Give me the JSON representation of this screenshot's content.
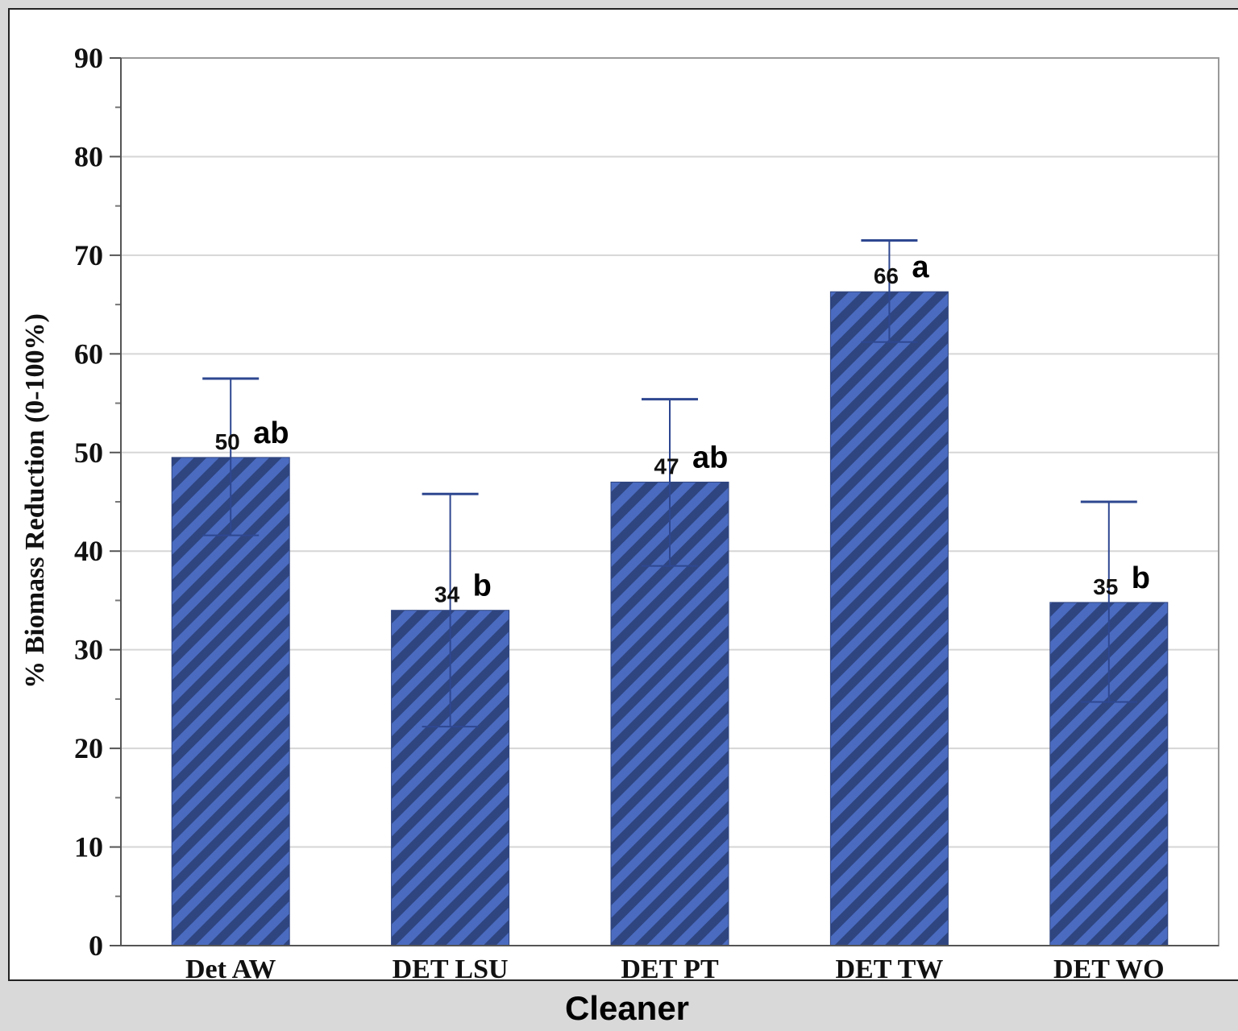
{
  "chart_data": {
    "type": "bar",
    "categories": [
      "Det AW",
      "DET LSU",
      "DET PT",
      "DET TW",
      "DET WO"
    ],
    "values": [
      49.5,
      34,
      47,
      66.3,
      34.8
    ],
    "value_labels": [
      "50",
      "34",
      "47",
      "66",
      "35"
    ],
    "group_letters": [
      "ab",
      "b",
      "ab",
      "a",
      "b"
    ],
    "error_low": [
      41.6,
      22.2,
      38.5,
      61.2,
      24.7
    ],
    "error_high": [
      57.5,
      45.8,
      55.4,
      71.5,
      45.0
    ],
    "xlabel": "Cleaner",
    "ylabel": "% Biomass Reduction (0-100%)",
    "ylim": [
      0,
      90
    ],
    "yticks": [
      0,
      10,
      20,
      30,
      40,
      50,
      60,
      70,
      80,
      90
    ],
    "grid": true,
    "bar_color": "#4a6bc0",
    "stripe_color": "#2f4580",
    "error_color": "#2e4790"
  }
}
